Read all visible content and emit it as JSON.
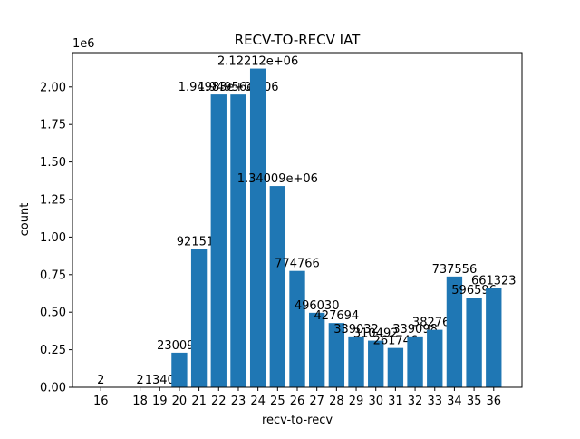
{
  "chart_data": {
    "type": "bar",
    "title": "RECV-TO-RECV IAT",
    "x_label": "recv-to-recv",
    "y_label": "count",
    "y_offset_label": "1e6",
    "x": [
      16,
      18,
      19,
      20,
      21,
      22,
      23,
      24,
      25,
      26,
      27,
      28,
      29,
      30,
      31,
      32,
      33,
      34,
      35,
      36
    ],
    "values": [
      2,
      2,
      1340,
      230094,
      921517,
      1949830,
      1949560,
      2122120,
      1340090,
      774766,
      496030,
      427694,
      339032,
      310492,
      261746,
      339098,
      382765,
      737556,
      596596,
      661323
    ],
    "value_labels": [
      "2",
      "2",
      "1340",
      "230094",
      "921517",
      "1.94983e+06",
      "1.94956e+06",
      "2.12212e+06",
      "1.34009e+06",
      "774766",
      "496030",
      "427694",
      "339032",
      "310492",
      "261746",
      "339098",
      "382765",
      "737556",
      "596596",
      "661323"
    ],
    "color": "#1f77b4",
    "xlim": [
      14.56,
      37.44
    ],
    "xticks": [
      16,
      18,
      19,
      20,
      21,
      22,
      23,
      24,
      25,
      26,
      27,
      28,
      29,
      30,
      31,
      32,
      33,
      34,
      35,
      36
    ],
    "ylim": [
      0,
      2228226
    ],
    "yticks": [
      {
        "value": 0,
        "label": "0.00"
      },
      {
        "value": 250000,
        "label": "0.25"
      },
      {
        "value": 500000,
        "label": "0.50"
      },
      {
        "value": 750000,
        "label": "0.75"
      },
      {
        "value": 1000000,
        "label": "1.00"
      },
      {
        "value": 1250000,
        "label": "1.25"
      },
      {
        "value": 1500000,
        "label": "1.50"
      },
      {
        "value": 1750000,
        "label": "1.75"
      },
      {
        "value": 2000000,
        "label": "2.00"
      }
    ]
  }
}
